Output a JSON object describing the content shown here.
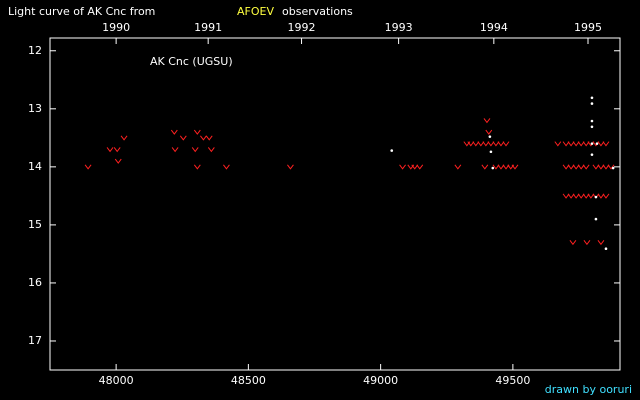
{
  "chart_data": {
    "type": "scatter",
    "title": "Light curve of AK Cnc from",
    "title_highlight": "AFOEV",
    "title_suffix": "observations",
    "annotation": "AK Cnc (UGSU)",
    "credit": "drawn by ooruri",
    "xlim": [
      47750,
      49905
    ],
    "xticks": [
      48000,
      48500,
      49000,
      49500
    ],
    "x2ticks": [
      {
        "value": 48000,
        "label": "1990"
      },
      {
        "value": 48348,
        "label": "1991"
      },
      {
        "value": 48701,
        "label": "1992"
      },
      {
        "value": 49068,
        "label": "1993"
      },
      {
        "value": 49428,
        "label": "1994"
      },
      {
        "value": 49784,
        "label": "1995"
      }
    ],
    "ylim": [
      11.78,
      17.5
    ],
    "y_inverted": true,
    "yticks": [
      12,
      13,
      14,
      15,
      16,
      17
    ],
    "series": [
      {
        "color": "#ff2020",
        "marker": "v",
        "x": [
          47894,
          47977,
          48004,
          48008,
          48030,
          48220,
          48223,
          48254,
          48299,
          48307,
          48330,
          48352,
          48360,
          48307,
          48417,
          48659,
          49083,
          49114,
          49129,
          49148,
          49292,
          49326,
          49341,
          49360,
          49379,
          49398,
          49402,
          49409,
          49417,
          49436,
          49455,
          49474,
          49394,
          49436,
          49455,
          49474,
          49492,
          49508,
          49670,
          49701,
          49720,
          49739,
          49758,
          49777,
          49795,
          49814,
          49833,
          49852,
          49701,
          49720,
          49739,
          49758,
          49777,
          49814,
          49833,
          49852,
          49701,
          49720,
          49739,
          49758,
          49777,
          49795,
          49814,
          49833,
          49852,
          49727,
          49780,
          49833,
          49871
        ],
        "values": [
          14.0,
          13.7,
          13.7,
          13.9,
          13.5,
          13.4,
          13.7,
          13.5,
          13.7,
          13.4,
          13.5,
          13.5,
          13.7,
          14.0,
          14.0,
          14.0,
          14.0,
          14.0,
          14.0,
          14.0,
          14.0,
          13.6,
          13.6,
          13.6,
          13.6,
          13.6,
          13.2,
          13.4,
          13.6,
          13.6,
          13.6,
          13.6,
          14.0,
          14.0,
          14.0,
          14.0,
          14.0,
          14.0,
          13.6,
          13.6,
          13.6,
          13.6,
          13.6,
          13.6,
          13.6,
          13.6,
          13.6,
          13.6,
          14.0,
          14.0,
          14.0,
          14.0,
          14.0,
          14.0,
          14.0,
          14.0,
          14.5,
          14.5,
          14.5,
          14.5,
          14.5,
          14.5,
          14.5,
          14.5,
          14.5,
          15.3,
          15.3,
          15.3,
          14.0
        ]
      },
      {
        "color": "#ffffff",
        "marker": "dot",
        "x": [
          49042,
          49413,
          49417,
          49424,
          49799,
          49799,
          49799,
          49799,
          49799,
          49799,
          49818,
          49814,
          49814,
          49852,
          49879
        ],
        "values": [
          13.72,
          13.48,
          13.74,
          14.02,
          12.81,
          12.91,
          13.21,
          13.31,
          13.6,
          13.79,
          13.6,
          14.52,
          14.9,
          15.41,
          14.02
        ]
      }
    ]
  }
}
